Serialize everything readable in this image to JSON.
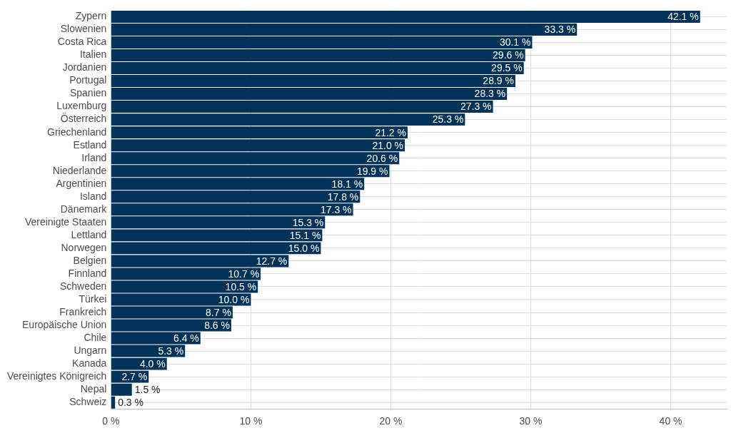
{
  "chart_data": {
    "type": "bar",
    "orientation": "horizontal",
    "categories": [
      "Zypern",
      "Slowenien",
      "Costa Rica",
      "Italien",
      "Jordanien",
      "Portugal",
      "Spanien",
      "Luxemburg",
      "Österreich",
      "Griechenland",
      "Estland",
      "Irland",
      "Niederlande",
      "Argentinien",
      "Island",
      "Dänemark",
      "Vereinigte Staaten",
      "Lettland",
      "Norwegen",
      "Belgien",
      "Finnland",
      "Schweden",
      "Türkei",
      "Frankreich",
      "Europäische Union",
      "Chile",
      "Ungarn",
      "Kanada",
      "Vereinigtes Königreich",
      "Nepal",
      "Schweiz"
    ],
    "values": [
      42.1,
      33.3,
      30.1,
      29.6,
      29.5,
      28.9,
      28.3,
      27.3,
      25.3,
      21.2,
      21.0,
      20.6,
      19.9,
      18.1,
      17.8,
      17.3,
      15.3,
      15.1,
      15.0,
      12.7,
      10.7,
      10.5,
      10.0,
      8.7,
      8.6,
      6.4,
      5.3,
      4.0,
      2.7,
      1.5,
      0.3
    ],
    "value_labels": [
      "42.1 %",
      "33.3 %",
      "30.1 %",
      "29.6 %",
      "29.5 %",
      "28.9 %",
      "28.3 %",
      "27.3 %",
      "25.3 %",
      "21.2 %",
      "21.0 %",
      "20.6 %",
      "19.9 %",
      "18.1 %",
      "17.8 %",
      "17.3 %",
      "15.3 %",
      "15.1 %",
      "15.0 %",
      "12.7 %",
      "10.7 %",
      "10.5 %",
      "10.0 %",
      "8.7 %",
      "8.6 %",
      "6.4 %",
      "5.3 %",
      "4.0 %",
      "2.7 %",
      "1.5 %",
      "0.3 %"
    ],
    "color": "#003357",
    "xlim": [
      0,
      44
    ],
    "xticks": [
      {
        "value": 0,
        "label": "0 %"
      },
      {
        "value": 10,
        "label": "10 %"
      },
      {
        "value": 20,
        "label": "20 %"
      },
      {
        "value": 30,
        "label": "30 %"
      },
      {
        "value": 40,
        "label": "40 %"
      }
    ],
    "grid": true,
    "data_labels": true
  }
}
